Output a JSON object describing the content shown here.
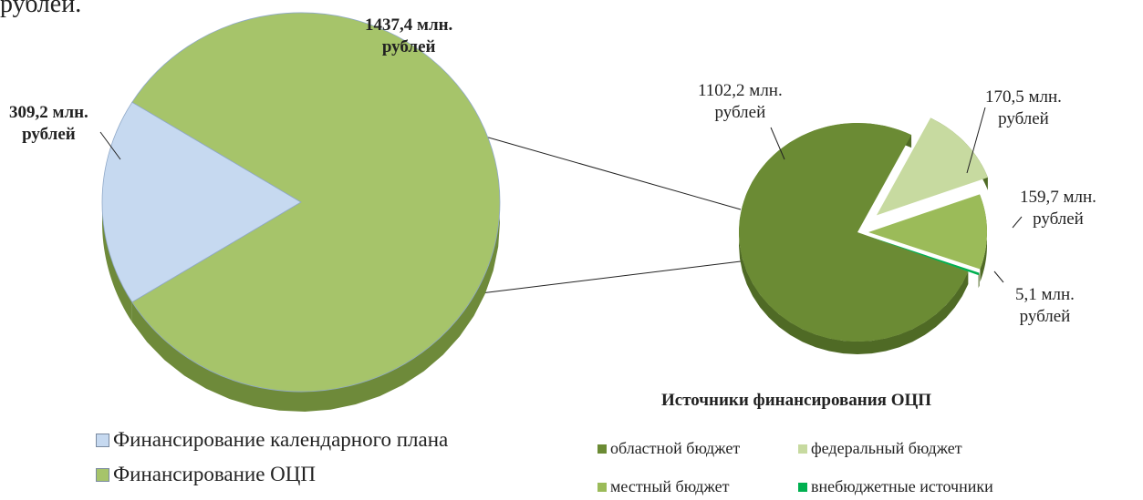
{
  "caption": "рублей.",
  "chart_data": [
    {
      "type": "pie",
      "categories": [
        "Финансирование календарного плана",
        "Финансирование  ОЦП"
      ],
      "values": [
        309.2,
        1437.4
      ],
      "value_labels": [
        "309,2 млн.\nрублей",
        "1437,4 млн.\nрублей"
      ],
      "colors": [
        "#c6d9f0",
        "#a6c46a"
      ]
    },
    {
      "type": "pie",
      "title": "Источники финансирования ОЦП",
      "categories": [
        "областной бюджет",
        "федеральный бюджет",
        "местный бюджет",
        "внебюджетные источники"
      ],
      "values": [
        1102.2,
        170.5,
        159.7,
        5.1
      ],
      "value_labels": [
        "1102,2  млн.\nрублей",
        "170,5  млн.\nрублей",
        "159,7  млн.\nрублей",
        "5,1  млн.\nрублей"
      ],
      "colors": [
        "#6b8b34",
        "#c7daa0",
        "#9bbb59",
        "#00b050"
      ]
    }
  ]
}
